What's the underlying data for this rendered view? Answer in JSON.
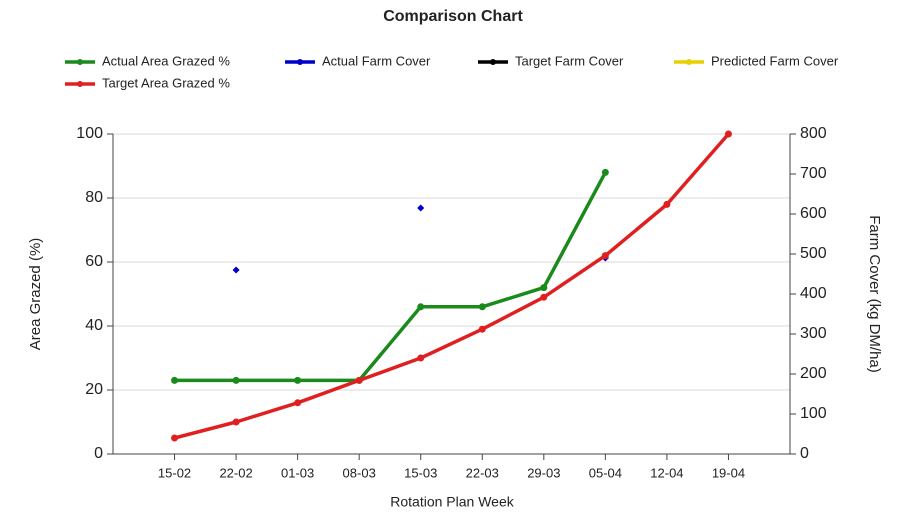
{
  "chart_data": {
    "type": "line",
    "title": "Comparison Chart",
    "x_label": "Rotation Plan Week",
    "y_label": "Area Grazed (%)",
    "y2_label": "Farm Cover (kg DM/ha)",
    "categories": [
      "15-02",
      "22-02",
      "01-03",
      "08-03",
      "15-03",
      "22-03",
      "29-03",
      "05-04",
      "12-04",
      "19-04"
    ],
    "ylim": [
      0,
      100
    ],
    "yticks": [
      0,
      20,
      40,
      60,
      80,
      100
    ],
    "y2lim": [
      0,
      800
    ],
    "y2ticks": [
      0,
      100,
      200,
      300,
      400,
      500,
      600,
      700,
      800
    ],
    "grid": true,
    "legend": "top",
    "series": [
      {
        "name": "Actual Area Grazed %",
        "color": "#1a8a1a",
        "values": [
          23,
          23,
          23,
          23,
          46,
          46,
          52,
          88,
          null,
          null
        ]
      },
      {
        "name": "Actual Farm Cover",
        "color": "#0000cc",
        "axis": "y2",
        "mode": "markers",
        "values": [
          null,
          460,
          null,
          null,
          615,
          null,
          null,
          490,
          null,
          null
        ]
      },
      {
        "name": "Target Farm Cover",
        "color": "#000000",
        "axis": "y2",
        "values": [
          null,
          null,
          null,
          null,
          null,
          null,
          null,
          null,
          null,
          null
        ]
      },
      {
        "name": "Predicted Farm Cover",
        "color": "#e8d000",
        "axis": "y2",
        "values": [
          null,
          null,
          null,
          null,
          null,
          null,
          null,
          null,
          null,
          null
        ]
      },
      {
        "name": "Target Area Grazed %",
        "color": "#e02020",
        "values": [
          5,
          10,
          16,
          23,
          30,
          39,
          49,
          62,
          78,
          100
        ]
      }
    ]
  }
}
